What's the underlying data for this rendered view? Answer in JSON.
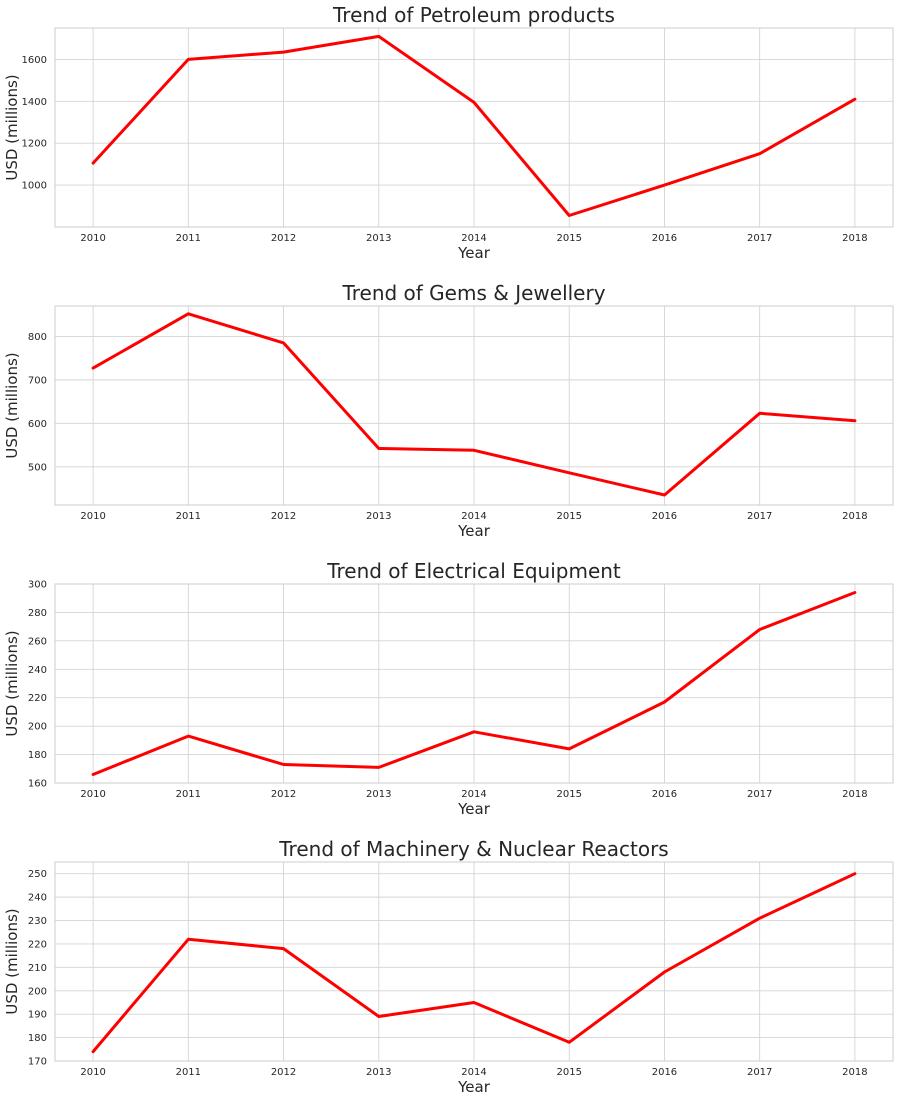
{
  "style": {
    "line_color": "#ff0000",
    "grid_color": "#d4d4d4",
    "background": "#ffffff"
  },
  "chart_data": [
    {
      "type": "line",
      "title": "Trend of Petroleum products",
      "xlabel": "Year",
      "ylabel": "USD (millions)",
      "x": [
        2010,
        2011,
        2012,
        2013,
        2014,
        2015,
        2016,
        2017,
        2018
      ],
      "series": [
        {
          "values": [
            1105,
            1600,
            1635,
            1710,
            1395,
            855,
            1000,
            1150,
            1410
          ]
        }
      ],
      "xlim": [
        2009.6,
        2018.4
      ],
      "ylim": [
        800,
        1750
      ],
      "yticks": [
        1000,
        1200,
        1400,
        1600
      ],
      "grid": true
    },
    {
      "type": "line",
      "title": "Trend of Gems & Jewellery",
      "xlabel": "Year",
      "ylabel": "USD (millions)",
      "x": [
        2010,
        2011,
        2012,
        2013,
        2014,
        2015,
        2016,
        2017,
        2018
      ],
      "series": [
        {
          "values": [
            727,
            852,
            785,
            542,
            538,
            486,
            435,
            623,
            606
          ]
        }
      ],
      "xlim": [
        2009.6,
        2018.4
      ],
      "ylim": [
        412,
        870
      ],
      "yticks": [
        500,
        600,
        700,
        800
      ],
      "grid": true
    },
    {
      "type": "line",
      "title": "Trend of Electrical Equipment",
      "xlabel": "Year",
      "ylabel": "USD (millions)",
      "x": [
        2010,
        2011,
        2012,
        2013,
        2014,
        2015,
        2016,
        2017,
        2018
      ],
      "series": [
        {
          "values": [
            166,
            193,
            173,
            171,
            196,
            184,
            217,
            268,
            294
          ]
        }
      ],
      "xlim": [
        2009.6,
        2018.4
      ],
      "ylim": [
        160,
        300
      ],
      "yticks": [
        160,
        180,
        200,
        220,
        240,
        260,
        280,
        300
      ],
      "grid": true
    },
    {
      "type": "line",
      "title": "Trend of Machinery & Nuclear Reactors",
      "xlabel": "Year",
      "ylabel": "USD (millions)",
      "x": [
        2010,
        2011,
        2012,
        2013,
        2014,
        2015,
        2016,
        2017,
        2018
      ],
      "series": [
        {
          "values": [
            174,
            222,
            218,
            189,
            195,
            178,
            208,
            231,
            250
          ]
        }
      ],
      "xlim": [
        2009.6,
        2018.4
      ],
      "ylim": [
        170,
        255
      ],
      "yticks": [
        170,
        180,
        190,
        200,
        210,
        220,
        230,
        240,
        250
      ],
      "grid": true
    }
  ]
}
